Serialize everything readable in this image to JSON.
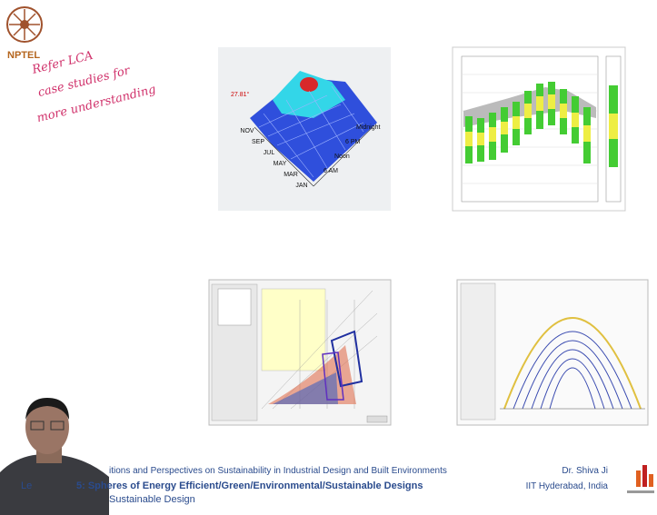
{
  "logo": {
    "label": "NPTEL"
  },
  "annotation": {
    "lines": [
      "Refer LCA",
      "case studies for",
      "more understanding"
    ]
  },
  "surface_plot": {
    "peak": "27.81°",
    "months": [
      "NOV",
      "SEP",
      "JUL",
      "MAY",
      "MAR",
      "JAN"
    ],
    "times": [
      "Midnight",
      "6 PM",
      "Noon",
      "6 AM"
    ]
  },
  "footer": {
    "course": "itions and Perspectives on Sustainability in Industrial Design and Built Environments",
    "lecture_prefix": "Le",
    "lecture": "5: Spheres of Energy Efficient/Green/Environmental/Sustainable Designs",
    "subtitle": "Sustainable Design",
    "author": "Dr. Shiva Ji",
    "affiliation": "IIT Hyderabad, India"
  }
}
